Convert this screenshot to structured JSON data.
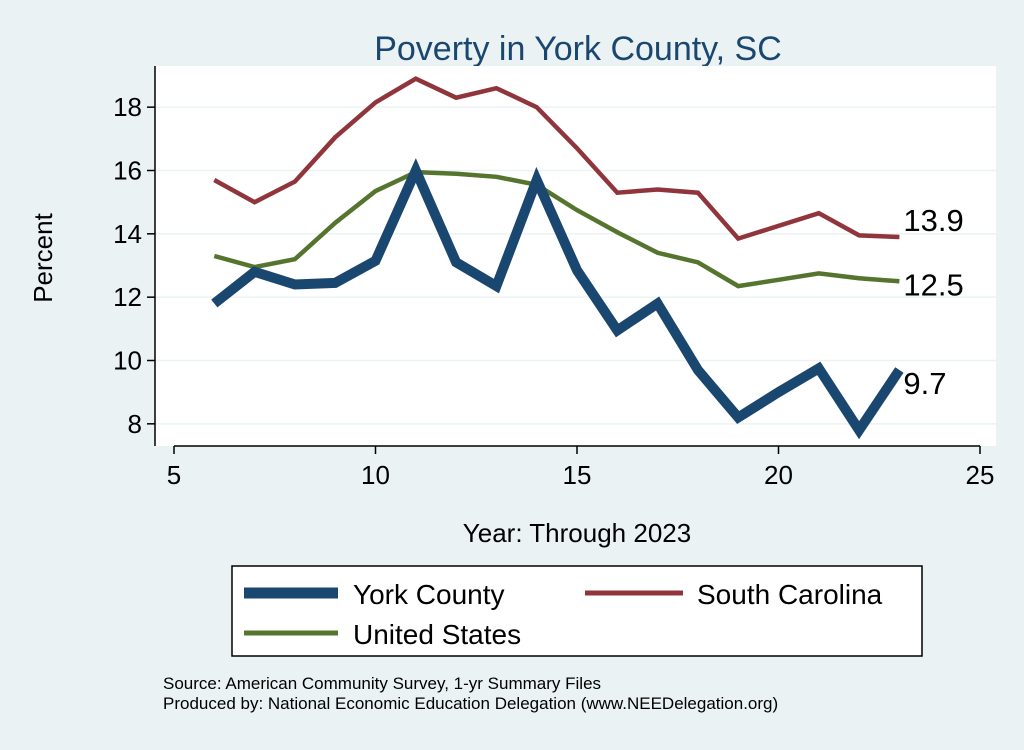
{
  "chart_data": {
    "type": "line",
    "title": "Poverty in York County, SC",
    "xlabel": "Year: Through 2023",
    "ylabel": "Percent",
    "xlim": [
      5,
      25
    ],
    "ylim": [
      7.3,
      19.3
    ],
    "xticks": [
      5,
      10,
      15,
      20,
      25
    ],
    "yticks": [
      8,
      10,
      12,
      14,
      16,
      18
    ],
    "grid": true,
    "legend_position": "bottom",
    "series": [
      {
        "name": "York County",
        "color": "#1a476f",
        "x": [
          6,
          7,
          8,
          9,
          10,
          11,
          12,
          13,
          14,
          15,
          16,
          17,
          18,
          19,
          20,
          21,
          22,
          23
        ],
        "values": [
          11.8,
          12.8,
          12.4,
          12.45,
          13.15,
          16.0,
          13.1,
          12.35,
          15.7,
          12.85,
          10.95,
          11.8,
          9.7,
          8.2,
          9.0,
          9.75,
          7.8,
          9.7
        ],
        "end_label": "9.7"
      },
      {
        "name": "South Carolina",
        "color": "#90353b",
        "x": [
          6,
          7,
          8,
          9,
          10,
          11,
          12,
          13,
          14,
          15,
          16,
          17,
          18,
          19,
          20,
          21,
          22,
          23
        ],
        "values": [
          15.7,
          15.0,
          15.65,
          17.05,
          18.15,
          18.9,
          18.3,
          18.6,
          18.0,
          16.7,
          15.3,
          15.4,
          15.3,
          13.85,
          14.25,
          14.65,
          13.95,
          13.9
        ],
        "end_label": "13.9"
      },
      {
        "name": "United States",
        "color": "#55752f",
        "x": [
          6,
          7,
          8,
          9,
          10,
          11,
          12,
          13,
          14,
          15,
          16,
          17,
          18,
          19,
          20,
          21,
          22,
          23
        ],
        "values": [
          13.3,
          12.95,
          13.2,
          14.35,
          15.35,
          15.95,
          15.9,
          15.8,
          15.55,
          14.75,
          14.05,
          13.4,
          13.1,
          12.35,
          12.55,
          12.75,
          12.6,
          12.5
        ],
        "end_label": "12.5"
      }
    ],
    "source_lines": [
      "Source: American Community Survey, 1-yr Summary Files",
      "Produced by: National Economic Education Delegation (www.NEEDelegation.org)"
    ]
  }
}
